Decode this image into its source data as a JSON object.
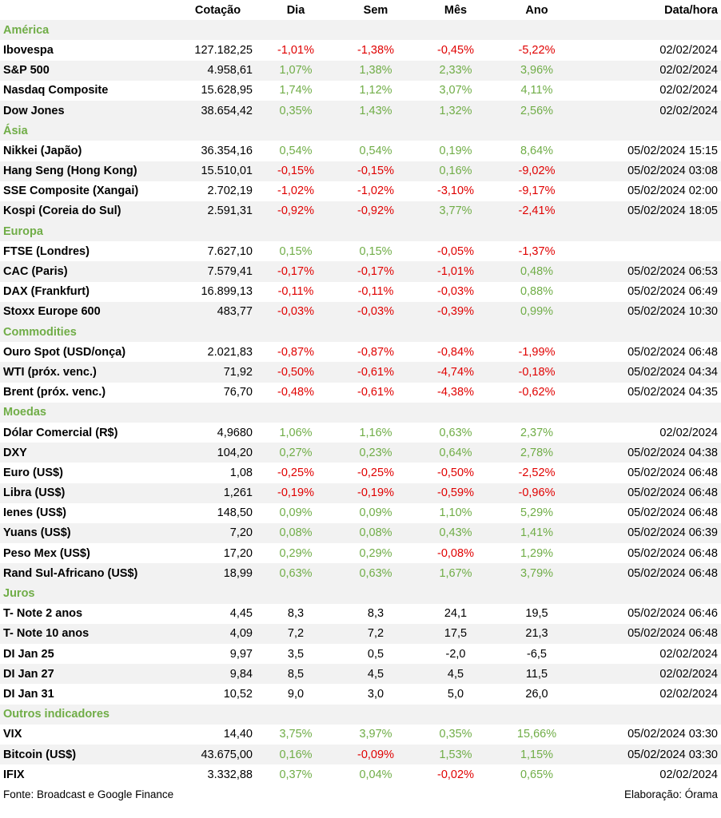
{
  "colors": {
    "positive": "#70ad47",
    "negative": "#e00000",
    "section": "#70ad47",
    "band": "#f2f2f2"
  },
  "headers": [
    "",
    "Cotação",
    "Dia",
    "Sem",
    "Mês",
    "Ano",
    "Data/hora"
  ],
  "sections": [
    {
      "title": "América",
      "rows": [
        {
          "name": "Ibovespa",
          "cot": "127.182,25",
          "dia": "-1,01%",
          "sem": "-1,38%",
          "mes": "-0,45%",
          "ano": "-5,22%",
          "dt": "02/02/2024"
        },
        {
          "name": "S&P 500",
          "cot": "4.958,61",
          "dia": "1,07%",
          "sem": "1,38%",
          "mes": "2,33%",
          "ano": "3,96%",
          "dt": "02/02/2024"
        },
        {
          "name": "Nasdaq Composite",
          "cot": "15.628,95",
          "dia": "1,74%",
          "sem": "1,12%",
          "mes": "3,07%",
          "ano": "4,11%",
          "dt": "02/02/2024"
        },
        {
          "name": "Dow Jones",
          "cot": "38.654,42",
          "dia": "0,35%",
          "sem": "1,43%",
          "mes": "1,32%",
          "ano": "2,56%",
          "dt": "02/02/2024"
        }
      ]
    },
    {
      "title": "Ásia",
      "rows": [
        {
          "name": "Nikkei (Japão)",
          "cot": "36.354,16",
          "dia": "0,54%",
          "sem": "0,54%",
          "mes": "0,19%",
          "ano": "8,64%",
          "dt": "05/02/2024 15:15"
        },
        {
          "name": "Hang Seng (Hong Kong)",
          "cot": "15.510,01",
          "dia": "-0,15%",
          "sem": "-0,15%",
          "mes": "0,16%",
          "ano": "-9,02%",
          "dt": "05/02/2024 03:08"
        },
        {
          "name": "SSE Composite (Xangai)",
          "cot": "2.702,19",
          "dia": "-1,02%",
          "sem": "-1,02%",
          "mes": "-3,10%",
          "ano": "-9,17%",
          "dt": "05/02/2024 02:00"
        },
        {
          "name": "Kospi (Coreia do Sul)",
          "cot": "2.591,31",
          "dia": "-0,92%",
          "sem": "-0,92%",
          "mes": "3,77%",
          "ano": "-2,41%",
          "dt": "05/02/2024 18:05"
        }
      ]
    },
    {
      "title": "Europa",
      "rows": [
        {
          "name": "FTSE (Londres)",
          "cot": "7.627,10",
          "dia": "0,15%",
          "sem": "0,15%",
          "mes": "-0,05%",
          "ano": "-1,37%",
          "dt": ""
        },
        {
          "name": "CAC (Paris)",
          "cot": "7.579,41",
          "dia": "-0,17%",
          "sem": "-0,17%",
          "mes": "-1,01%",
          "ano": "0,48%",
          "dt": "05/02/2024 06:53"
        },
        {
          "name": "DAX (Frankfurt)",
          "cot": "16.899,13",
          "dia": "-0,11%",
          "sem": "-0,11%",
          "mes": "-0,03%",
          "ano": "0,88%",
          "dt": "05/02/2024 06:49"
        },
        {
          "name": "Stoxx Europe 600",
          "cot": "483,77",
          "dia": "-0,03%",
          "sem": "-0,03%",
          "mes": "-0,39%",
          "ano": "0,99%",
          "dt": "05/02/2024 10:30"
        }
      ]
    },
    {
      "title": "Commodities",
      "rows": [
        {
          "name": "Ouro Spot (USD/onça)",
          "cot": "2.021,83",
          "dia": "-0,87%",
          "sem": "-0,87%",
          "mes": "-0,84%",
          "ano": "-1,99%",
          "dt": "05/02/2024 06:48"
        },
        {
          "name": "WTI (próx. venc.)",
          "cot": "71,92",
          "dia": "-0,50%",
          "sem": "-0,61%",
          "mes": "-4,74%",
          "ano": "-0,18%",
          "dt": "05/02/2024 04:34"
        },
        {
          "name": "Brent (próx. venc.)",
          "cot": "76,70",
          "dia": "-0,48%",
          "sem": "-0,61%",
          "mes": "-4,38%",
          "ano": "-0,62%",
          "dt": "05/02/2024 04:35"
        }
      ]
    },
    {
      "title": "Moedas",
      "rows": [
        {
          "name": "Dólar Comercial (R$)",
          "cot": "4,9680",
          "dia": "1,06%",
          "sem": "1,16%",
          "mes": "0,63%",
          "ano": "2,37%",
          "dt": "02/02/2024"
        },
        {
          "name": "DXY",
          "cot": "104,20",
          "dia": "0,27%",
          "sem": "0,23%",
          "mes": "0,64%",
          "ano": "2,78%",
          "dt": "05/02/2024 04:38"
        },
        {
          "name": "Euro (US$)",
          "cot": "1,08",
          "dia": "-0,25%",
          "sem": "-0,25%",
          "mes": "-0,50%",
          "ano": "-2,52%",
          "dt": "05/02/2024 06:48"
        },
        {
          "name": "Libra (US$)",
          "cot": "1,261",
          "dia": "-0,19%",
          "sem": "-0,19%",
          "mes": "-0,59%",
          "ano": "-0,96%",
          "dt": "05/02/2024 06:48"
        },
        {
          "name": "Ienes (US$)",
          "cot": "148,50",
          "dia": "0,09%",
          "sem": "0,09%",
          "mes": "1,10%",
          "ano": "5,29%",
          "dt": "05/02/2024 06:48"
        },
        {
          "name": "Yuans (US$)",
          "cot": "7,20",
          "dia": "0,08%",
          "sem": "0,08%",
          "mes": "0,43%",
          "ano": "1,41%",
          "dt": "05/02/2024 06:39"
        },
        {
          "name": "Peso Mex (US$)",
          "cot": "17,20",
          "dia": "0,29%",
          "sem": "0,29%",
          "mes": "-0,08%",
          "ano": "1,29%",
          "dt": "05/02/2024 06:48"
        },
        {
          "name": "Rand Sul-Africano (US$)",
          "cot": "18,99",
          "dia": "0,63%",
          "sem": "0,63%",
          "mes": "1,67%",
          "ano": "3,79%",
          "dt": "05/02/2024 06:48"
        }
      ]
    },
    {
      "title": "Juros",
      "rows": [
        {
          "name": "T- Note 2 anos",
          "cot": "4,45",
          "dia": "8,3",
          "sem": "8,3",
          "mes": "24,1",
          "ano": "19,5",
          "dt": "05/02/2024 06:46"
        },
        {
          "name": "T- Note 10 anos",
          "cot": "4,09",
          "dia": "7,2",
          "sem": "7,2",
          "mes": "17,5",
          "ano": "21,3",
          "dt": "05/02/2024 06:48"
        },
        {
          "name": "DI Jan 25",
          "cot": "9,97",
          "dia": "3,5",
          "sem": "0,5",
          "mes": "-2,0",
          "ano": "-6,5",
          "dt": "02/02/2024"
        },
        {
          "name": "DI Jan 27",
          "cot": "9,84",
          "dia": "8,5",
          "sem": "4,5",
          "mes": "4,5",
          "ano": "11,5",
          "dt": "02/02/2024"
        },
        {
          "name": "DI Jan 31",
          "cot": "10,52",
          "dia": "9,0",
          "sem": "3,0",
          "mes": "5,0",
          "ano": "26,0",
          "dt": "02/02/2024"
        }
      ]
    },
    {
      "title": "Outros indicadores",
      "rows": [
        {
          "name": "VIX",
          "cot": "14,40",
          "dia": "3,75%",
          "sem": "3,97%",
          "mes": "0,35%",
          "ano": "15,66%",
          "dt": "05/02/2024 03:30"
        },
        {
          "name": "Bitcoin (US$)",
          "cot": "43.675,00",
          "dia": "0,16%",
          "sem": "-0,09%",
          "mes": "1,53%",
          "ano": "1,15%",
          "dt": "05/02/2024 03:30"
        },
        {
          "name": "IFIX",
          "cot": "3.332,88",
          "dia": "0,37%",
          "sem": "0,04%",
          "mes": "-0,02%",
          "ano": "0,65%",
          "dt": "02/02/2024"
        }
      ]
    }
  ],
  "footer": {
    "source": "Fonte: Broadcast e Google Finance",
    "credit": "Elaboração: Órama"
  }
}
